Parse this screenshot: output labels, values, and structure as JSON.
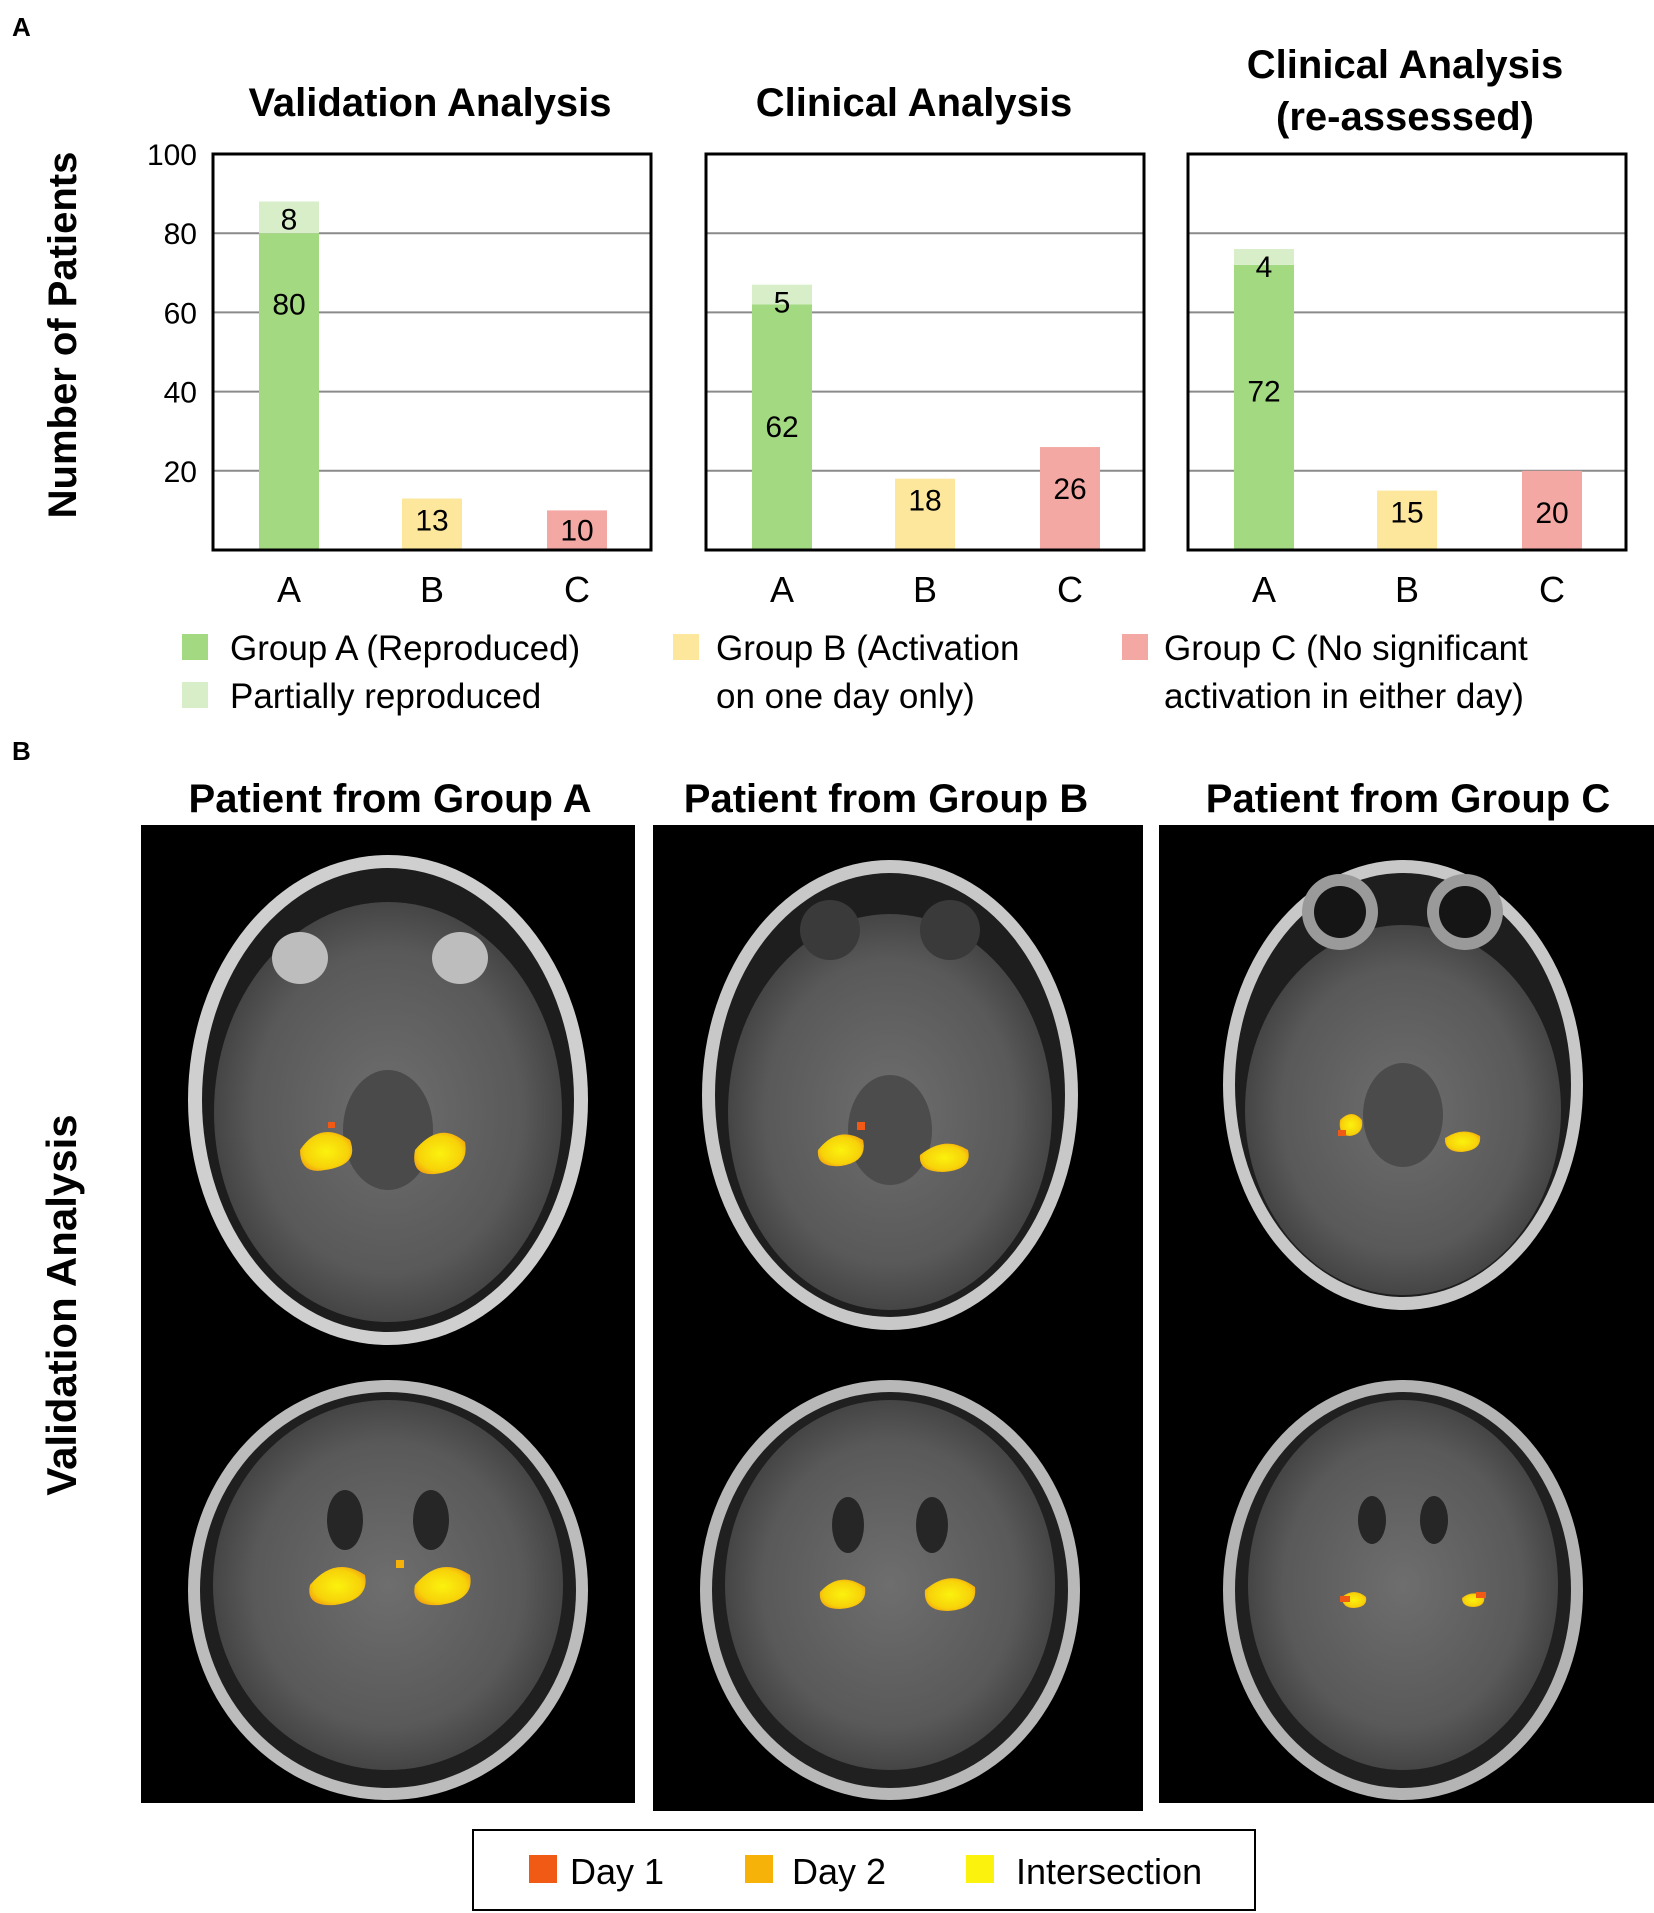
{
  "panel_a_label": "A",
  "panel_b_label": "B",
  "colors": {
    "group_a": "#a2d981",
    "partial": "#d8eec9",
    "group_b": "#fde79c",
    "group_c": "#f3a8a3",
    "grid": "#8a8a8a",
    "day1": "#f05a14",
    "day2": "#f7b20a",
    "intersection": "#fbf20d"
  },
  "chart_data": [
    {
      "type": "bar",
      "stacked": true,
      "title": "Validation Analysis",
      "ylabel": "Number of Patients",
      "ylim": [
        0,
        100
      ],
      "yticks": [
        20,
        40,
        60,
        80,
        100
      ],
      "categories": [
        "A",
        "B",
        "C"
      ],
      "series": [
        {
          "name": "Group A (Reproduced)",
          "values": [
            80,
            null,
            null
          ]
        },
        {
          "name": "Partially reproduced",
          "values": [
            8,
            null,
            null
          ]
        },
        {
          "name": "Group B (Activation on one day only)",
          "values": [
            null,
            13,
            null
          ]
        },
        {
          "name": "Group C (No significant activation in either day)",
          "values": [
            null,
            null,
            10
          ]
        }
      ],
      "labels": {
        "a_base": "80",
        "a_top": "8",
        "b": "13",
        "c": "10"
      }
    },
    {
      "type": "bar",
      "stacked": true,
      "title": "Clinical Analysis",
      "ylim": [
        0,
        100
      ],
      "categories": [
        "A",
        "B",
        "C"
      ],
      "series": [
        {
          "name": "Group A (Reproduced)",
          "values": [
            62,
            null,
            null
          ]
        },
        {
          "name": "Partially reproduced",
          "values": [
            5,
            null,
            null
          ]
        },
        {
          "name": "Group B (Activation on one day only)",
          "values": [
            null,
            18,
            null
          ]
        },
        {
          "name": "Group C (No significant activation in either day)",
          "values": [
            null,
            null,
            26
          ]
        }
      ],
      "labels": {
        "a_base": "62",
        "a_top": "5",
        "b": "18",
        "c": "26"
      }
    },
    {
      "type": "bar",
      "stacked": true,
      "title_line1": "Clinical Analysis",
      "title_line2": "(re-assessed)",
      "ylim": [
        0,
        100
      ],
      "categories": [
        "A",
        "B",
        "C"
      ],
      "series": [
        {
          "name": "Group A (Reproduced)",
          "values": [
            72,
            null,
            null
          ]
        },
        {
          "name": "Partially reproduced",
          "values": [
            4,
            null,
            null
          ]
        },
        {
          "name": "Group B (Activation on one day only)",
          "values": [
            null,
            15,
            null
          ]
        },
        {
          "name": "Group C (No significant activation in either day)",
          "values": [
            null,
            null,
            20
          ]
        }
      ],
      "labels": {
        "a_base": "72",
        "a_top": "4",
        "b": "15",
        "c": "20"
      }
    }
  ],
  "legend": {
    "group_a": "Group A (Reproduced)",
    "partial": "Partially reproduced",
    "group_b_line1": "Group B (Activation",
    "group_b_line2": "on one day only)",
    "group_c_line1": "Group C (No significant",
    "group_c_line2": "activation in either day)"
  },
  "panel_b": {
    "row_label": "Validation Analysis",
    "columns": [
      "Patient from Group A",
      "Patient from Group B",
      "Patient from Group C"
    ],
    "legend": [
      "Day 1",
      "Day 2",
      "Intersection"
    ]
  }
}
